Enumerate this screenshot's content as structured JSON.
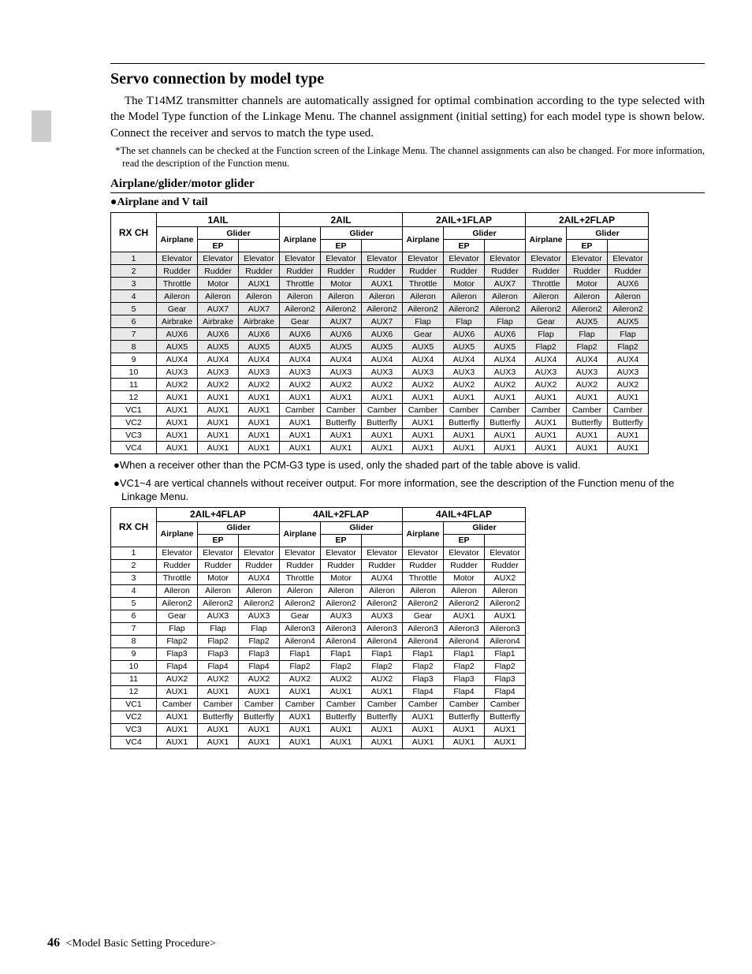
{
  "title": "Servo connection by model type",
  "para1": "The T14MZ transmitter channels are automatically assigned for optimal combination according to the type selected with the Model Type function of the Linkage Menu. The channel assignment (initial setting) for each model type is shown below. Connect the receiver and servos to match the type used.",
  "footnote": "*The set channels can be checked at the Function screen of the Linkage Menu. The channel assignments can also be changed. For more information, read the description of the Function menu.",
  "h2": "Airplane/glider/motor glider",
  "h3": "●Airplane and V tail",
  "row_labels": [
    "1",
    "2",
    "3",
    "4",
    "5",
    "6",
    "7",
    "8",
    "9",
    "10",
    "11",
    "12",
    "VC1",
    "VC2",
    "VC3",
    "VC4"
  ],
  "groups1": [
    "1AIL",
    "2AIL",
    "2AIL+1FLAP",
    "2AIL+2FLAP"
  ],
  "sub_labels": {
    "rx": "RX CH",
    "air": "Airplane",
    "gl": "Glider",
    "ep": "EP"
  },
  "shaded_rows": 8,
  "t1": {
    "1AIL": {
      "a": [
        "Elevator",
        "Rudder",
        "Throttle",
        "Aileron",
        "Gear",
        "Airbrake",
        "AUX6",
        "AUX5",
        "AUX4",
        "AUX3",
        "AUX2",
        "AUX1",
        "AUX1",
        "AUX1",
        "AUX1",
        "AUX1"
      ],
      "ep": [
        "Elevator",
        "Rudder",
        "Motor",
        "Aileron",
        "AUX7",
        "Airbrake",
        "AUX6",
        "AUX5",
        "AUX4",
        "AUX3",
        "AUX2",
        "AUX1",
        "AUX1",
        "AUX1",
        "AUX1",
        "AUX1"
      ],
      "g": [
        "Elevator",
        "Rudder",
        "AUX1",
        "Aileron",
        "AUX7",
        "Airbrake",
        "AUX6",
        "AUX5",
        "AUX4",
        "AUX3",
        "AUX2",
        "AUX1",
        "AUX1",
        "AUX1",
        "AUX1",
        "AUX1"
      ]
    },
    "2AIL": {
      "a": [
        "Elevator",
        "Rudder",
        "Throttle",
        "Aileron",
        "Aileron2",
        "Gear",
        "AUX6",
        "AUX5",
        "AUX4",
        "AUX3",
        "AUX2",
        "AUX1",
        "Camber",
        "AUX1",
        "AUX1",
        "AUX1"
      ],
      "ep": [
        "Elevator",
        "Rudder",
        "Motor",
        "Aileron",
        "Aileron2",
        "AUX7",
        "AUX6",
        "AUX5",
        "AUX4",
        "AUX3",
        "AUX2",
        "AUX1",
        "Camber",
        "Butterfly",
        "AUX1",
        "AUX1"
      ],
      "g": [
        "Elevator",
        "Rudder",
        "AUX1",
        "Aileron",
        "Aileron2",
        "AUX7",
        "AUX6",
        "AUX5",
        "AUX4",
        "AUX3",
        "AUX2",
        "AUX1",
        "Camber",
        "Butterfly",
        "AUX1",
        "AUX1"
      ]
    },
    "2AIL+1FLAP": {
      "a": [
        "Elevator",
        "Rudder",
        "Throttle",
        "Aileron",
        "Aileron2",
        "Flap",
        "Gear",
        "AUX5",
        "AUX4",
        "AUX3",
        "AUX2",
        "AUX1",
        "Camber",
        "AUX1",
        "AUX1",
        "AUX1"
      ],
      "ep": [
        "Elevator",
        "Rudder",
        "Motor",
        "Aileron",
        "Aileron2",
        "Flap",
        "AUX6",
        "AUX5",
        "AUX4",
        "AUX3",
        "AUX2",
        "AUX1",
        "Camber",
        "Butterfly",
        "AUX1",
        "AUX1"
      ],
      "g": [
        "Elevator",
        "Rudder",
        "AUX7",
        "Aileron",
        "Aileron2",
        "Flap",
        "AUX6",
        "AUX5",
        "AUX4",
        "AUX3",
        "AUX2",
        "AUX1",
        "Camber",
        "Butterfly",
        "AUX1",
        "AUX1"
      ]
    },
    "2AIL+2FLAP": {
      "a": [
        "Elevator",
        "Rudder",
        "Throttle",
        "Aileron",
        "Aileron2",
        "Gear",
        "Flap",
        "Flap2",
        "AUX4",
        "AUX3",
        "AUX2",
        "AUX1",
        "Camber",
        "AUX1",
        "AUX1",
        "AUX1"
      ],
      "ep": [
        "Elevator",
        "Rudder",
        "Motor",
        "Aileron",
        "Aileron2",
        "AUX5",
        "Flap",
        "Flap2",
        "AUX4",
        "AUX3",
        "AUX2",
        "AUX1",
        "Camber",
        "Butterfly",
        "AUX1",
        "AUX1"
      ],
      "g": [
        "Elevator",
        "Rudder",
        "AUX6",
        "Aileron",
        "Aileron2",
        "AUX5",
        "Flap",
        "Flap2",
        "AUX4",
        "AUX3",
        "AUX2",
        "AUX1",
        "Camber",
        "Butterfly",
        "AUX1",
        "AUX1"
      ]
    }
  },
  "note1": "●When a receiver other than the PCM-G3 type is used, only the shaded part of the table above is valid.",
  "note2": "●VC1~4 are vertical channels without receiver output. For more information, see the description of the Function menu of the Linkage Menu.",
  "groups2": [
    "2AIL+4FLAP",
    "4AIL+2FLAP",
    "4AIL+4FLAP"
  ],
  "t2": {
    "2AIL+4FLAP": {
      "a": [
        "Elevator",
        "Rudder",
        "Throttle",
        "Aileron",
        "Aileron2",
        "Gear",
        "Flap",
        "Flap2",
        "Flap3",
        "Flap4",
        "AUX2",
        "AUX1",
        "Camber",
        "AUX1",
        "AUX1",
        "AUX1"
      ],
      "ep": [
        "Elevator",
        "Rudder",
        "Motor",
        "Aileron",
        "Aileron2",
        "AUX3",
        "Flap",
        "Flap2",
        "Flap3",
        "Flap4",
        "AUX2",
        "AUX1",
        "Camber",
        "Butterfly",
        "AUX1",
        "AUX1"
      ],
      "g": [
        "Elevator",
        "Rudder",
        "AUX4",
        "Aileron",
        "Aileron2",
        "AUX3",
        "Flap",
        "Flap2",
        "Flap3",
        "Flap4",
        "AUX2",
        "AUX1",
        "Camber",
        "Butterfly",
        "AUX1",
        "AUX1"
      ]
    },
    "4AIL+2FLAP": {
      "a": [
        "Elevator",
        "Rudder",
        "Throttle",
        "Aileron",
        "Aileron2",
        "Gear",
        "Aileron3",
        "Aileron4",
        "Flap1",
        "Flap2",
        "AUX2",
        "AUX1",
        "Camber",
        "AUX1",
        "AUX1",
        "AUX1"
      ],
      "ep": [
        "Elevator",
        "Rudder",
        "Motor",
        "Aileron",
        "Aileron2",
        "AUX3",
        "Aileron3",
        "Aileron4",
        "Flap1",
        "Flap2",
        "AUX2",
        "AUX1",
        "Camber",
        "Butterfly",
        "AUX1",
        "AUX1"
      ],
      "g": [
        "Elevator",
        "Rudder",
        "AUX4",
        "Aileron",
        "Aileron2",
        "AUX3",
        "Aileron3",
        "Aileron4",
        "Flap1",
        "Flap2",
        "AUX2",
        "AUX1",
        "Camber",
        "Butterfly",
        "AUX1",
        "AUX1"
      ]
    },
    "4AIL+4FLAP": {
      "a": [
        "Elevator",
        "Rudder",
        "Throttle",
        "Aileron",
        "Aileron2",
        "Gear",
        "Aileron3",
        "Aileron4",
        "Flap1",
        "Flap2",
        "Flap3",
        "Flap4",
        "Camber",
        "AUX1",
        "AUX1",
        "AUX1"
      ],
      "ep": [
        "Elevator",
        "Rudder",
        "Motor",
        "Aileron",
        "Aileron2",
        "AUX1",
        "Aileron3",
        "Aileron4",
        "Flap1",
        "Flap2",
        "Flap3",
        "Flap4",
        "Camber",
        "Butterfly",
        "AUX1",
        "AUX1"
      ],
      "g": [
        "Elevator",
        "Rudder",
        "AUX2",
        "Aileron",
        "Aileron2",
        "AUX1",
        "Aileron3",
        "Aileron4",
        "Flap1",
        "Flap2",
        "Flap3",
        "Flap4",
        "Camber",
        "Butterfly",
        "AUX1",
        "AUX1"
      ]
    }
  },
  "page_num": "46",
  "page_section": "<Model Basic Setting Procedure>"
}
